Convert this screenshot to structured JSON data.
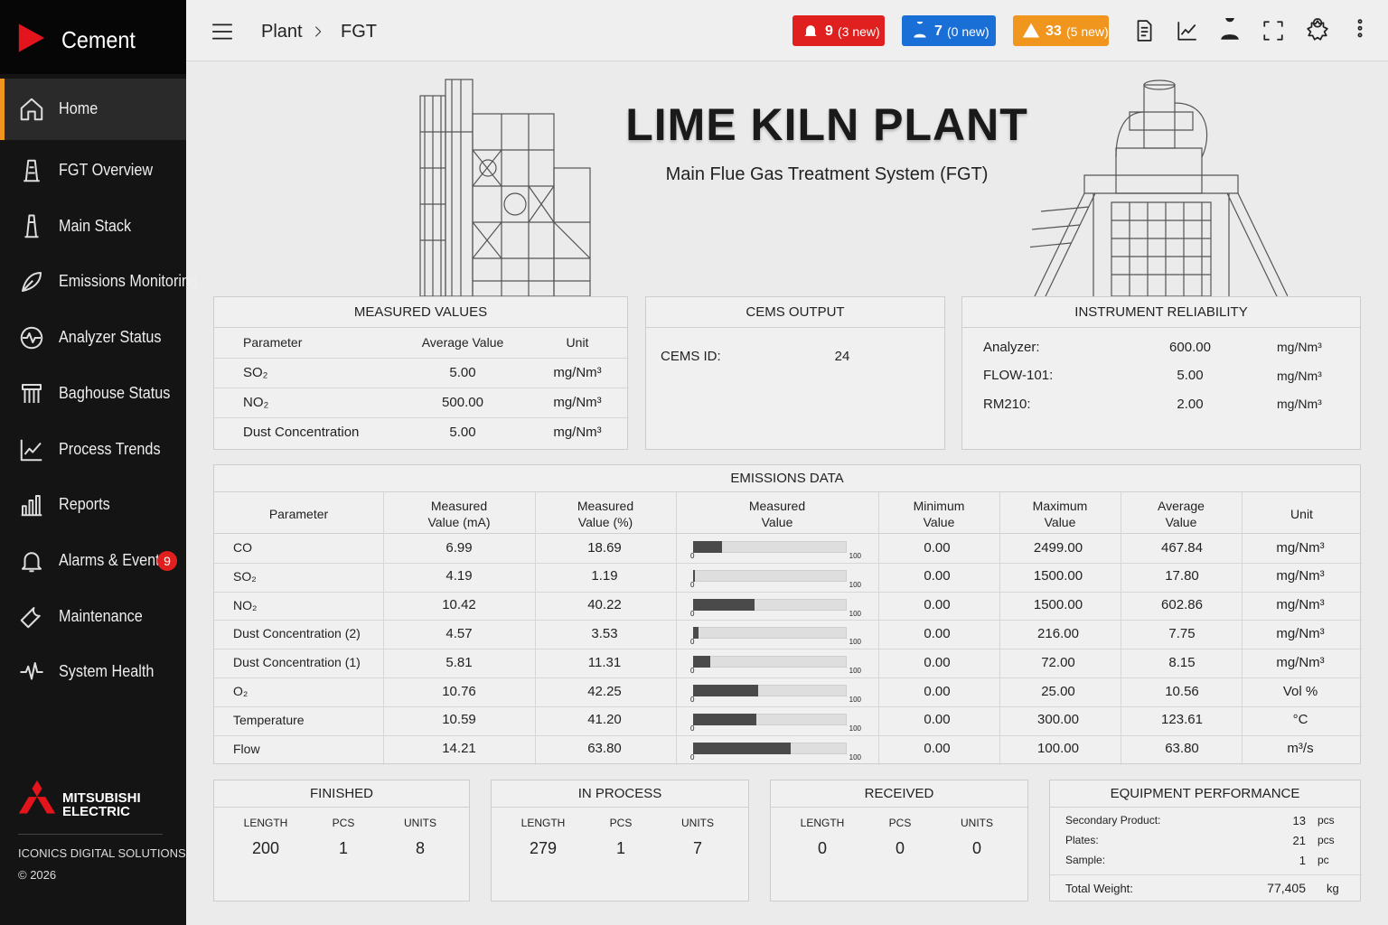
{
  "sidebar": {
    "brand": "Cement",
    "nav": [
      {
        "label": "Home"
      },
      {
        "label": "FGT Overview"
      },
      {
        "label": "Main Stack"
      },
      {
        "label": "Emissions Monitoring"
      },
      {
        "label": "Analyzer Status"
      },
      {
        "label": "Baghouse Status"
      },
      {
        "label": "Process Trends"
      },
      {
        "label": "Reports"
      },
      {
        "label": "Alarms & Events",
        "badge": "9"
      },
      {
        "label": "Maintenance"
      },
      {
        "label": "System Health"
      }
    ],
    "logo": [
      "MITSUBISHI",
      "ELECTRIC"
    ],
    "company": "ICONICS DIGITAL SOLUTIONS",
    "copyright": "© 2026"
  },
  "header": {
    "breadcrumb": [
      "Plant",
      "FGT"
    ],
    "badges": [
      {
        "count": "9",
        "new": "(3 new)"
      },
      {
        "count": "7",
        "new": "(0 new)"
      },
      {
        "count": "33",
        "new": "(5 new)"
      }
    ]
  },
  "hero": {
    "title": "LIME KILN PLANT",
    "subtitle": "Main Flue Gas Treatment System (FGT)"
  },
  "measured_values": {
    "title": "MEASURED VALUES",
    "columns": [
      "Parameter",
      "Average Value",
      "Unit"
    ],
    "rows": [
      [
        "SO₂",
        "5.00",
        "mg/Nm³"
      ],
      [
        "NO₂",
        "500.00",
        "mg/Nm³"
      ],
      [
        "Dust Concentration",
        "5.00",
        "mg/Nm³"
      ]
    ]
  },
  "cems_output": {
    "title": "CEMS OUTPUT",
    "label": "CEMS ID:",
    "value": "24"
  },
  "instrument_reliability": {
    "title": "INSTRUMENT RELIABILITY",
    "rows": [
      [
        "Analyzer:",
        "600.00",
        "mg/Nm³"
      ],
      [
        "FLOW-101:",
        "5.00",
        "mg/Nm³"
      ],
      [
        "RM210:",
        "2.00",
        "mg/Nm³"
      ]
    ]
  },
  "emissions_data": {
    "title": "EMISSIONS DATA",
    "columns": [
      "Parameter",
      "Measured\nValue (mA)",
      "Measured\nValue (%)",
      "Measured\nValue",
      "Minimum\nValue",
      "Maximum\nValue",
      "Average\nValue",
      "Unit"
    ],
    "bar_scale": [
      0,
      100
    ],
    "rows": [
      [
        "CO",
        "6.99",
        "18.69",
        "0.00",
        "2499.00",
        "467.84",
        "mg/Nm³"
      ],
      [
        "SO₂",
        "4.19",
        "1.19",
        "0.00",
        "1500.00",
        "17.80",
        "mg/Nm³"
      ],
      [
        "NO₂",
        "10.42",
        "40.22",
        "0.00",
        "1500.00",
        "602.86",
        "mg/Nm³"
      ],
      [
        "Dust Concentration (2)",
        "4.57",
        "3.53",
        "0.00",
        "216.00",
        "7.75",
        "mg/Nm³"
      ],
      [
        "Dust Concentration (1)",
        "5.81",
        "11.31",
        "0.00",
        "72.00",
        "8.15",
        "mg/Nm³"
      ],
      [
        "O₂",
        "10.76",
        "42.25",
        "0.00",
        "25.00",
        "10.56",
        "Vol %"
      ],
      [
        "Temperature",
        "10.59",
        "41.20",
        "0.00",
        "300.00",
        "123.61",
        "°C"
      ],
      [
        "Flow",
        "14.21",
        "63.80",
        "0.00",
        "100.00",
        "63.80",
        "m³/s"
      ]
    ]
  },
  "finished": {
    "title": "FINISHED",
    "columns": [
      "LENGTH",
      "PCS",
      "UNITS"
    ],
    "values": [
      "200",
      "1",
      "8"
    ]
  },
  "in_process": {
    "title": "IN PROCESS",
    "columns": [
      "LENGTH",
      "PCS",
      "UNITS"
    ],
    "values": [
      "279",
      "1",
      "7"
    ]
  },
  "received": {
    "title": "RECEIVED",
    "columns": [
      "LENGTH",
      "PCS",
      "UNITS"
    ],
    "values": [
      "0",
      "0",
      "0"
    ]
  },
  "equipment_performance": {
    "title": "EQUIPMENT PERFORMANCE",
    "rows": [
      [
        "Secondary Product:",
        "13",
        "pcs"
      ],
      [
        "Plates:",
        "21",
        "pcs"
      ],
      [
        "Sample:",
        "1",
        "pc"
      ]
    ],
    "total": [
      "Total Weight:",
      "77,405",
      "kg"
    ]
  }
}
